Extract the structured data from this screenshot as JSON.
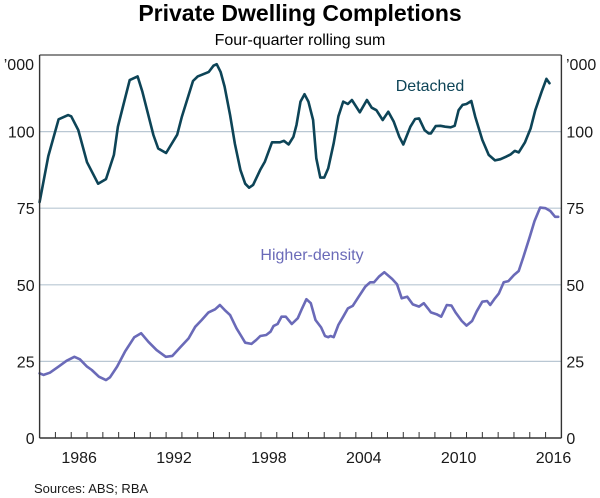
{
  "chart_data": {
    "type": "line",
    "title": "Private Dwelling Completions",
    "subtitle": "Four-quarter rolling sum",
    "unit_left": "’000",
    "unit_right": "’000",
    "xlabel": "",
    "ylabel": "’000",
    "xlim": [
      1984,
      2017
    ],
    "ylim": [
      0,
      125
    ],
    "y_ticks": [
      0,
      25,
      50,
      75,
      100
    ],
    "x_tick_labels": [
      "1986",
      "1992",
      "1998",
      "2004",
      "2010",
      "2016"
    ],
    "x_tick_label_years": [
      1986,
      1992,
      1998,
      2004,
      2010,
      2016
    ],
    "grid": true,
    "source": "Sources:  ABS; RBA",
    "colors": {
      "detached": "#0d4457",
      "higher_density": "#6a6ab8",
      "grid": "#b9c7d3",
      "axis": "#555555"
    },
    "series": [
      {
        "name": "Detached",
        "label": "Detached",
        "color": "#0d4457",
        "x": [
          1984.0,
          1984.55,
          1985.2,
          1985.8,
          1986.0,
          1986.45,
          1987.0,
          1987.7,
          1988.2,
          1988.7,
          1988.95,
          1989.25,
          1989.7,
          1990.2,
          1990.5,
          1991.2,
          1991.5,
          1992.0,
          1992.7,
          1993.0,
          1993.7,
          1994.0,
          1994.7,
          1995.0,
          1995.2,
          1995.45,
          1995.7,
          1996.05,
          1996.35,
          1996.7,
          1997.0,
          1997.25,
          1997.5,
          1997.95,
          1998.25,
          1998.7,
          1999.2,
          1999.45,
          1999.75,
          2000.05,
          2000.25,
          2000.5,
          2000.75,
          2001.0,
          2001.3,
          2001.5,
          2001.75,
          2002.0,
          2002.25,
          2002.6,
          2002.9,
          2003.2,
          2003.5,
          2003.75,
          2004.25,
          2004.7,
          2005.0,
          2005.3,
          2005.7,
          2006.05,
          2006.4,
          2006.75,
          2007.0,
          2007.45,
          2007.75,
          2008.0,
          2008.35,
          2008.6,
          2008.75,
          2009.05,
          2009.35,
          2009.65,
          2010.0,
          2010.25,
          2010.5,
          2010.75,
          2011.0,
          2011.3,
          2011.55,
          2012.0,
          2012.4,
          2012.8,
          2013.15,
          2013.5,
          2013.8,
          2014.05,
          2014.3,
          2014.7,
          2015.05,
          2015.35,
          2015.75,
          2016.05,
          2016.25
        ],
        "values": [
          77,
          92,
          104,
          105.4,
          105,
          100.5,
          90,
          83,
          84.5,
          92.4,
          101.6,
          107.7,
          116.8,
          118,
          113,
          98.9,
          94.5,
          93,
          99,
          104.9,
          116.5,
          118,
          119.5,
          121.5,
          122,
          119.5,
          114.7,
          105.4,
          96,
          87.5,
          83,
          81.7,
          82.6,
          87.5,
          90.2,
          96.5,
          96.5,
          97,
          95.8,
          98.3,
          102.2,
          109.8,
          112.2,
          109.8,
          103.8,
          91.3,
          85,
          85,
          88,
          96.2,
          105,
          109.8,
          109,
          110.3,
          106.3,
          110.3,
          107.8,
          107,
          103.8,
          106.5,
          103.2,
          98.3,
          95.8,
          101.6,
          104.1,
          104.3,
          100.5,
          99.4,
          99.4,
          101.8,
          101.9,
          101.6,
          101.4,
          101.9,
          107,
          108.7,
          109,
          110,
          104.9,
          97.3,
          92.4,
          90.6,
          91,
          91.8,
          92.6,
          93.7,
          93.2,
          96.5,
          101,
          107,
          113,
          117.2,
          115.8
        ]
      },
      {
        "name": "Higher-density",
        "label": "Higher-density",
        "color": "#6a6ab8",
        "x": [
          1984.0,
          1984.25,
          1984.65,
          1985.2,
          1985.7,
          1986.2,
          1986.55,
          1987.0,
          1987.3,
          1987.75,
          1988.2,
          1988.45,
          1988.9,
          1989.4,
          1989.99,
          1990.42,
          1990.88,
          1991.4,
          1991.98,
          1992.4,
          1992.9,
          1993.42,
          1993.84,
          1994.25,
          1994.68,
          1995.1,
          1995.4,
          1995.7,
          1996.05,
          1996.45,
          1996.75,
          1997.0,
          1997.4,
          1997.7,
          1997.96,
          1998.33,
          1998.6,
          1998.8,
          1999.05,
          1999.3,
          1999.57,
          1999.95,
          2000.33,
          2000.6,
          2000.87,
          2001.15,
          2001.45,
          2001.8,
          2002.05,
          2002.25,
          2002.4,
          2002.6,
          2002.9,
          2003.2,
          2003.5,
          2003.8,
          2004.15,
          2004.6,
          2004.9,
          2005.15,
          2005.45,
          2005.8,
          2006.3,
          2006.6,
          2006.9,
          2007.25,
          2007.6,
          2008.0,
          2008.3,
          2008.56,
          2008.75,
          2009.1,
          2009.4,
          2009.75,
          2010.05,
          2010.3,
          2010.7,
          2011.0,
          2011.35,
          2011.65,
          2012.0,
          2012.3,
          2012.5,
          2012.8,
          2013.05,
          2013.35,
          2013.65,
          2014.0,
          2014.3,
          2014.6,
          2015.0,
          2015.3,
          2015.65,
          2016.0,
          2016.3,
          2016.6,
          2016.8
        ],
        "values": [
          21.1,
          20.6,
          21.3,
          23.3,
          25.2,
          26.5,
          25.7,
          23.3,
          22.2,
          20,
          18.9,
          19.8,
          23.3,
          28.2,
          32.9,
          34.2,
          31.4,
          28.7,
          26.5,
          26.8,
          29.6,
          32.5,
          36.3,
          38.5,
          41,
          42,
          43.4,
          41.8,
          40.1,
          35.8,
          33.3,
          31.1,
          30.7,
          32,
          33.3,
          33.6,
          34.7,
          36.6,
          37.2,
          39.6,
          39.6,
          37.2,
          39.1,
          42.3,
          45.3,
          44,
          38.5,
          36.1,
          33.3,
          32.9,
          33.3,
          32.9,
          36.9,
          39.6,
          42.3,
          43.1,
          45.9,
          49.4,
          50.8,
          50.8,
          52.6,
          54.1,
          51.9,
          50.2,
          45.6,
          46.1,
          43.6,
          42.9,
          44,
          42.3,
          41,
          40.4,
          39.6,
          43.4,
          43.2,
          41,
          38.2,
          36.7,
          38.2,
          41.4,
          44.5,
          44.7,
          43.4,
          45.6,
          47.2,
          50.8,
          51.2,
          53.2,
          54.5,
          59.2,
          65.7,
          70.8,
          75.2,
          75,
          74.1,
          72.2,
          72.2
        ]
      }
    ],
    "annotations": [
      {
        "text": "Detached",
        "series": "Detached"
      },
      {
        "text": "Higher-density",
        "series": "Higher-density"
      }
    ]
  }
}
